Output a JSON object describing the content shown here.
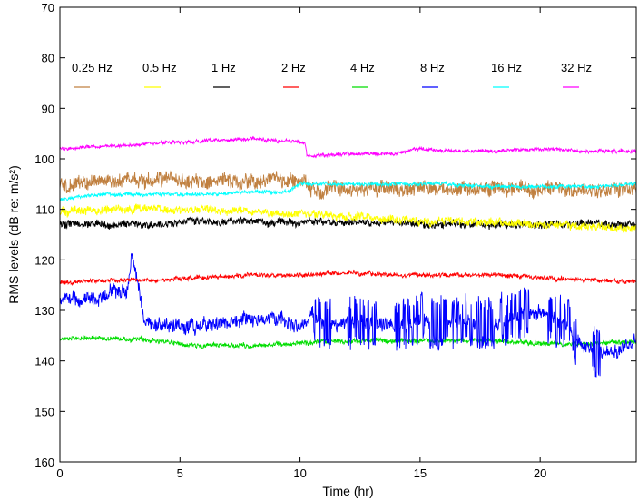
{
  "chart_data": {
    "type": "line",
    "title": "",
    "xlabel": "Time (hr)",
    "ylabel": "RMS levels (dB re: m/s²)",
    "xlim": [
      0,
      24
    ],
    "ylim": [
      70,
      160
    ],
    "y_inverted": true,
    "xticks": [
      0,
      5,
      10,
      15,
      20
    ],
    "yticks": [
      70,
      80,
      90,
      100,
      110,
      120,
      130,
      140,
      150,
      160
    ],
    "grid": false,
    "legend": "top, horizontal row inside plot",
    "series": [
      {
        "name": "0.25 Hz",
        "color": "#c08040",
        "x": [
          0,
          2,
          4,
          6,
          8,
          10,
          10.5,
          12,
          14,
          16,
          18,
          20,
          22,
          23,
          24
        ],
        "y": [
          105,
          104.5,
          104,
          104.5,
          104.5,
          104,
          106,
          106,
          106,
          106,
          106,
          106,
          106,
          107,
          106
        ]
      },
      {
        "name": "0.5 Hz",
        "color": "#ffff00",
        "x": [
          0,
          2,
          4,
          6,
          8,
          10,
          12,
          14,
          16,
          18,
          20,
          22,
          24
        ],
        "y": [
          110.5,
          110,
          110,
          110,
          110.5,
          111,
          111.5,
          112,
          112.5,
          112.5,
          113,
          113.5,
          114
        ]
      },
      {
        "name": "1 Hz",
        "color": "#000000",
        "x": [
          0,
          2,
          4,
          6,
          8,
          10,
          12,
          14,
          16,
          18,
          20,
          22,
          24
        ],
        "y": [
          113,
          113,
          113,
          112.5,
          112.5,
          112.5,
          112.5,
          112.5,
          113,
          113,
          113,
          113,
          113
        ]
      },
      {
        "name": "2 Hz",
        "color": "#ff0000",
        "x": [
          0,
          2,
          4,
          6,
          8,
          10,
          12,
          14,
          16,
          18,
          20,
          22,
          24
        ],
        "y": [
          124.5,
          124,
          124,
          123.5,
          123,
          123,
          122.5,
          123,
          123,
          123,
          123.5,
          124,
          124.5
        ]
      },
      {
        "name": "4 Hz",
        "color": "#00dd00",
        "x": [
          0,
          2,
          4,
          6,
          8,
          10,
          12,
          14,
          16,
          18,
          20,
          22,
          24
        ],
        "y": [
          135.5,
          135.5,
          136,
          137,
          137,
          136.5,
          136,
          136,
          136,
          136,
          136.5,
          136.5,
          136
        ]
      },
      {
        "name": "8 Hz",
        "color": "#0000ff",
        "x": [
          0,
          1,
          2,
          2.8,
          3,
          3.5,
          4,
          5,
          6,
          7,
          8,
          9,
          10,
          10.5,
          11,
          12,
          13,
          14,
          15,
          16,
          17,
          18,
          19,
          20,
          21,
          22,
          23,
          24
        ],
        "y": [
          128,
          128,
          127,
          126,
          119,
          132,
          133,
          133,
          133,
          132,
          132,
          132,
          133,
          131,
          133,
          132,
          133,
          133,
          132,
          132,
          132,
          133,
          131,
          130,
          133,
          138,
          138,
          136
        ]
      },
      {
        "name": "16 Hz",
        "color": "#00ffff",
        "x": [
          0,
          2,
          4,
          6,
          8,
          9.5,
          10,
          10.5,
          12,
          14,
          16,
          18,
          20,
          22,
          24
        ],
        "y": [
          108,
          107,
          107,
          107,
          106.5,
          106.5,
          105,
          105,
          105,
          105,
          105,
          105.5,
          105.5,
          105.5,
          105
        ]
      },
      {
        "name": "32 Hz",
        "color": "#ff00ff",
        "x": [
          0,
          2,
          4,
          6,
          8,
          9.5,
          10.2,
          10.3,
          12,
          14,
          15,
          16,
          18,
          20,
          22,
          24
        ],
        "y": [
          98,
          97.5,
          97,
          96.5,
          96,
          96.5,
          97,
          99.5,
          99,
          99,
          98,
          98.5,
          98.5,
          98,
          98.5,
          98.5
        ]
      }
    ]
  }
}
